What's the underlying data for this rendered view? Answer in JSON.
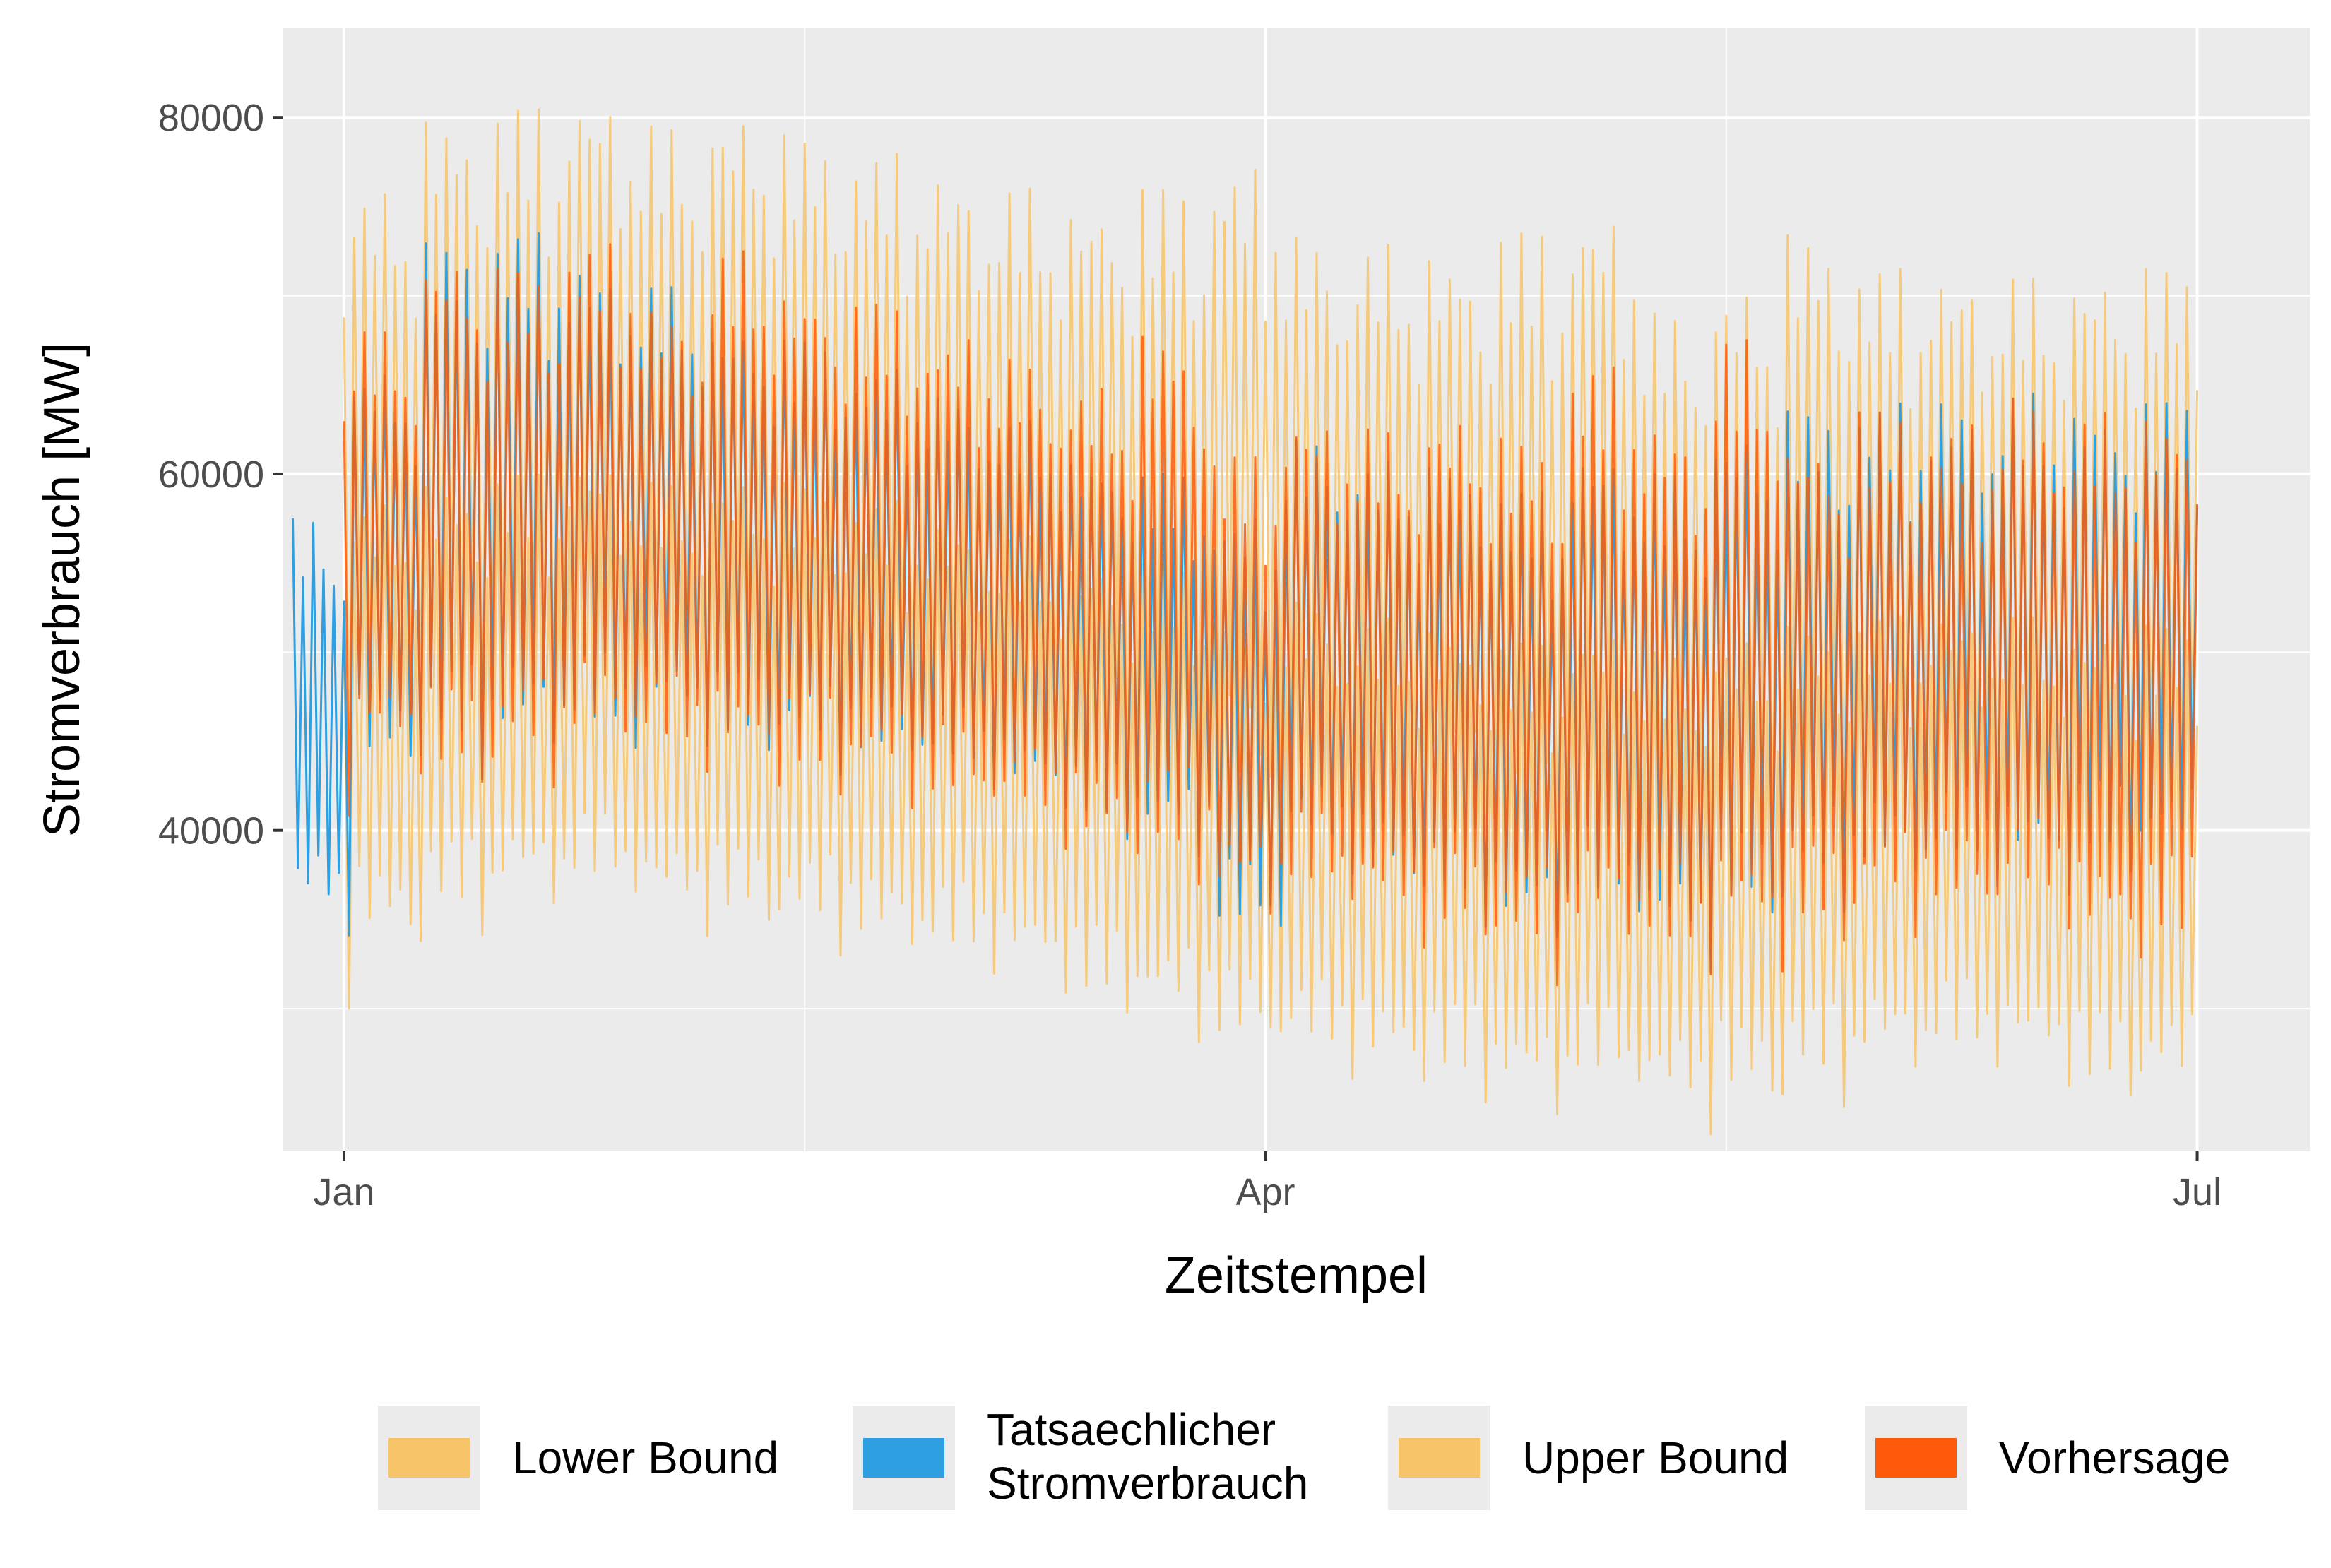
{
  "chart_data": {
    "type": "line",
    "title": "",
    "xlabel": "Zeitstempel",
    "ylabel": "Stromverbrauch [MW]",
    "x_range": [
      "2022-12-26",
      "2023-07-12"
    ],
    "ylim": [
      22000,
      85000
    ],
    "y_ticks": [
      40000,
      60000,
      80000
    ],
    "y_minor_ticks": [
      30000,
      50000,
      70000
    ],
    "x_ticks": [
      {
        "date": "2023-01-01",
        "label": "Jan"
      },
      {
        "date": "2023-04-01",
        "label": "Apr"
      },
      {
        "date": "2023-07-01",
        "label": "Jul"
      }
    ],
    "x_minor_ticks": [
      "2023-02-15",
      "2023-05-16"
    ],
    "grid": true,
    "legend_position": "bottom",
    "legend": [
      {
        "key": "lower",
        "label": "Lower Bound"
      },
      {
        "key": "actual",
        "label": "Tatsaechlicher Stromverbrauch",
        "lines": [
          "Tatsaechlicher",
          "Stromverbrauch"
        ]
      },
      {
        "key": "upper",
        "label": "Upper Bound"
      },
      {
        "key": "forecast",
        "label": "Vorhersage"
      }
    ],
    "series": [
      {
        "key": "actual",
        "name": "Tatsaechlicher Stromverbrauch",
        "color": "#2e9fe0",
        "date_range": [
          "2022-12-27",
          "2023-07-01"
        ],
        "weekly_peak_MW": [
          57500,
          66000,
          73000,
          73500,
          72000,
          70500,
          68500,
          67500,
          66000,
          64500,
          63000,
          61000,
          60000,
          58000,
          62000,
          61000,
          60500,
          59000,
          61500,
          60000,
          62500,
          63500,
          64000,
          64500,
          64500,
          64000
        ],
        "weekly_trough_MW": [
          35000,
          43500,
          44000,
          44500,
          45000,
          45500,
          44500,
          44000,
          43500,
          43000,
          41500,
          40000,
          39000,
          34000,
          38500,
          36500,
          35500,
          34000,
          35500,
          33000,
          35000,
          36500,
          37000,
          37500,
          37000,
          38000
        ]
      },
      {
        "key": "forecast",
        "name": "Vorhersage",
        "color": "#ff5a0a",
        "date_range": [
          "2023-01-01",
          "2023-07-01"
        ],
        "weekly_peak_MW": [
          67000,
          68000,
          72500,
          71500,
          73000,
          69500,
          72500,
          70500,
          69500,
          68000,
          66500,
          65000,
          68000,
          61000,
          63500,
          62500,
          63500,
          62000,
          66000,
          63000,
          67500,
          62000,
          63500,
          63000,
          64500,
          63500
        ],
        "weekly_trough_MW": [
          41000,
          44000,
          42500,
          43500,
          44500,
          44000,
          43000,
          42500,
          42000,
          41000,
          40000,
          38500,
          38000,
          35500,
          36000,
          34500,
          33500,
          32500,
          33500,
          32500,
          33000,
          34000,
          35000,
          35000,
          35500,
          33000
        ]
      },
      {
        "key": "upper",
        "name": "Upper Bound",
        "color": "#f7c46a",
        "date_range": [
          "2023-01-01",
          "2023-07-01"
        ],
        "weekly_peak_MW": [
          74500,
          76000,
          80000,
          80500,
          81500,
          79500,
          80500,
          79000,
          78000,
          77000,
          76000,
          75500,
          76000,
          77500,
          73500,
          73000,
          72500,
          73500,
          75000,
          69000,
          70500,
          73500,
          71500,
          71500,
          71000,
          71500
        ],
        "weekly_trough_MW": [
          45000,
          46500,
          46500,
          46000,
          47500,
          46500,
          46500,
          46000,
          45500,
          45000,
          44000,
          43000,
          42500,
          41000,
          40500,
          40000,
          39500,
          38500,
          38500,
          38000,
          38500,
          39000,
          39500,
          40000,
          40000,
          39500
        ]
      },
      {
        "key": "lower",
        "name": "Lower Bound",
        "color": "#f7c46a",
        "date_range": [
          "2023-01-01",
          "2023-07-01"
        ],
        "weekly_peak_MW": [
          56000,
          58500,
          59500,
          60000,
          61000,
          59500,
          60000,
          59500,
          58500,
          57500,
          56500,
          55500,
          55000,
          53500,
          53000,
          52000,
          51500,
          50500,
          51500,
          50000,
          51000,
          51500,
          52000,
          52500,
          52000,
          51500
        ],
        "weekly_trough_MW": [
          31000,
          33500,
          35000,
          36000,
          36500,
          35000,
          34500,
          34000,
          33000,
          32500,
          31500,
          30000,
          29000,
          27500,
          27000,
          26000,
          25500,
          24500,
          25500,
          24000,
          24500,
          25500,
          26500,
          27000,
          26500,
          25000
        ]
      }
    ]
  },
  "colors": {
    "panel_background": "#ebebeb",
    "gridline": "#ffffff",
    "actual": "#2e9fe0",
    "forecast": "#ff5a0a",
    "bounds": "#f7c46a"
  }
}
